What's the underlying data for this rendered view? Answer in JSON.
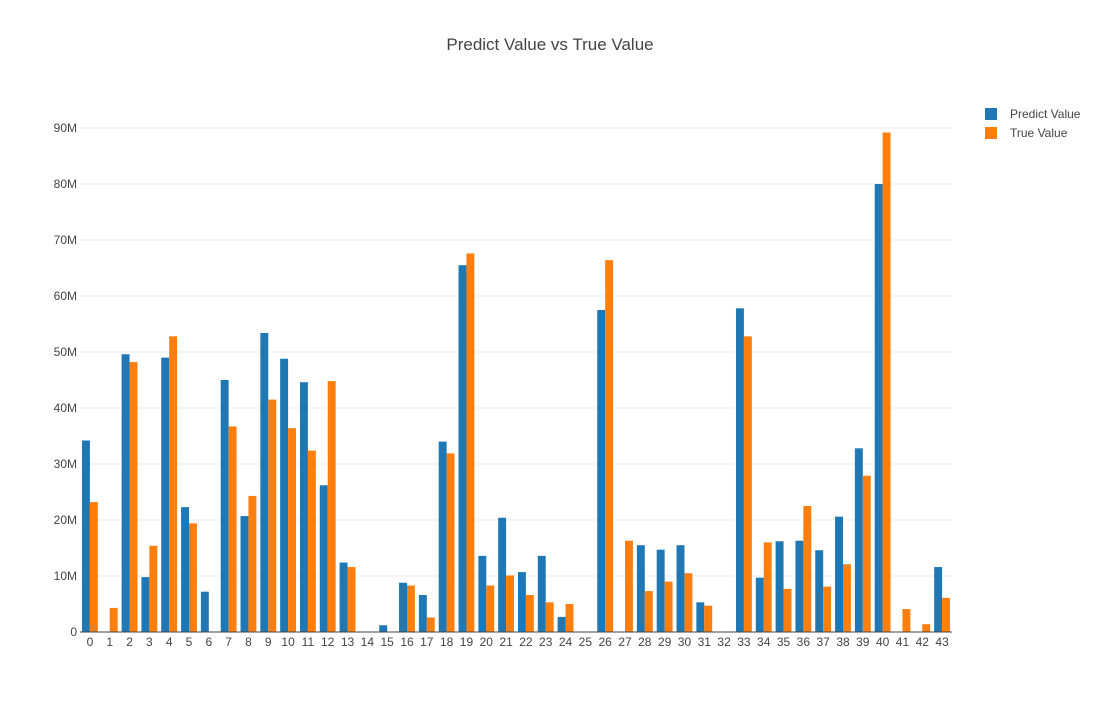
{
  "chart_data": {
    "type": "bar",
    "title": "Predict Value vs True Value",
    "xlabel": "",
    "ylabel": "",
    "categories": [
      "0",
      "1",
      "2",
      "3",
      "4",
      "5",
      "6",
      "7",
      "8",
      "9",
      "10",
      "11",
      "12",
      "13",
      "14",
      "15",
      "16",
      "17",
      "18",
      "19",
      "20",
      "21",
      "22",
      "23",
      "24",
      "25",
      "26",
      "27",
      "28",
      "29",
      "30",
      "31",
      "32",
      "33",
      "34",
      "35",
      "36",
      "37",
      "38",
      "39",
      "40",
      "41",
      "42",
      "43"
    ],
    "ylim": [
      0,
      95000000
    ],
    "yticks": [
      0,
      10000000,
      20000000,
      30000000,
      40000000,
      50000000,
      60000000,
      70000000,
      80000000,
      90000000
    ],
    "ytick_labels": [
      "0",
      "10M",
      "20M",
      "30M",
      "40M",
      "50M",
      "60M",
      "70M",
      "80M",
      "90M"
    ],
    "grid": true,
    "legend_position": "top-right",
    "series": [
      {
        "name": "Predict Value",
        "color": "#1f77b4",
        "values": [
          34200000,
          0,
          49600000,
          9800000,
          49000000,
          22300000,
          7200000,
          45000000,
          20700000,
          53400000,
          48800000,
          44600000,
          26200000,
          12400000,
          0,
          1200000,
          8800000,
          6600000,
          34000000,
          65500000,
          13600000,
          20400000,
          10700000,
          13600000,
          2700000,
          0,
          57500000,
          0,
          15500000,
          14700000,
          15500000,
          5300000,
          0,
          57800000,
          9700000,
          16200000,
          16300000,
          14600000,
          20600000,
          32800000,
          80000000,
          0,
          0,
          11600000
        ]
      },
      {
        "name": "True Value",
        "color": "#ff7f0e",
        "values": [
          23200000,
          4300000,
          48200000,
          15400000,
          52800000,
          19400000,
          0,
          36700000,
          24300000,
          41500000,
          36400000,
          32400000,
          44800000,
          11600000,
          0,
          0,
          8300000,
          2600000,
          31900000,
          67600000,
          8300000,
          10100000,
          6600000,
          5300000,
          5000000,
          0,
          66400000,
          16300000,
          7300000,
          9000000,
          10500000,
          4700000,
          0,
          52800000,
          16000000,
          7700000,
          22500000,
          8100000,
          12100000,
          27900000,
          89200000,
          4100000,
          1400000,
          6100000
        ]
      }
    ]
  }
}
